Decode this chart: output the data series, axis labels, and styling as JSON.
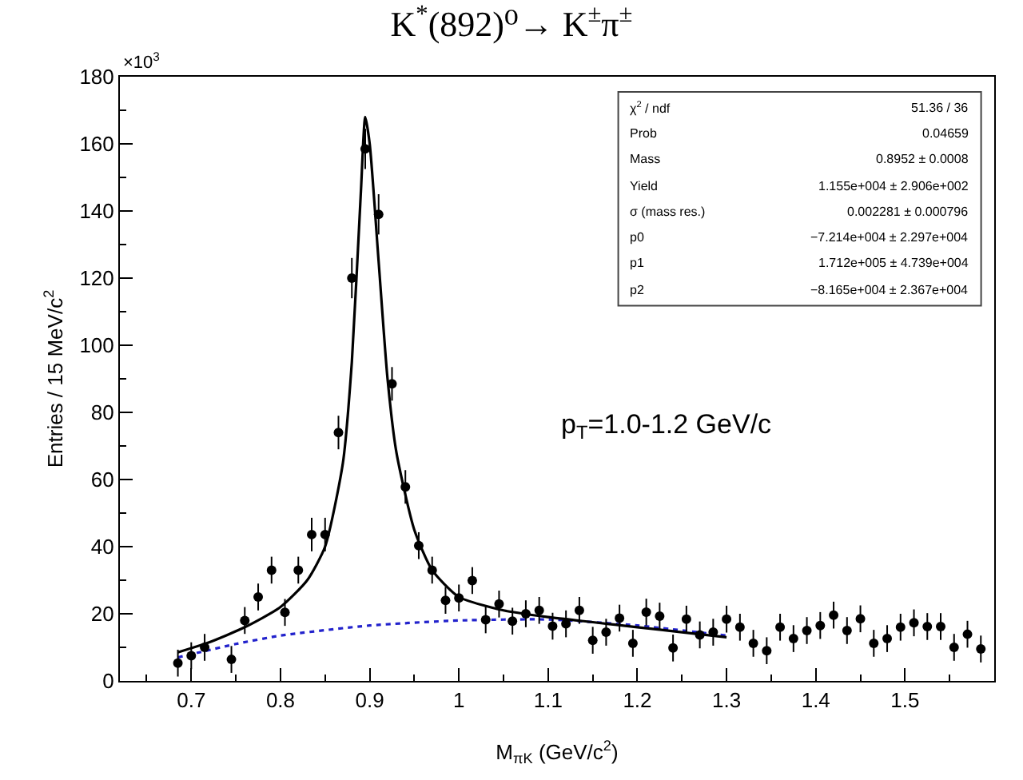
{
  "chart_data": {
    "type": "scatter",
    "title": "K$^{*}$(892)⁰→ K$^{±}$π$^{±}$",
    "xlabel": "M$_{πK}$ (GeV/c$^{2}$)",
    "ylabel": "Entries / 15 MeV/c$^{2}$",
    "xlim": [
      0.62,
      1.6
    ],
    "xticks": [
      0.7,
      0.8,
      0.9,
      1,
      1.1,
      1.2,
      1.3,
      1.4,
      1.5
    ],
    "ylim": [
      0,
      180
    ],
    "yticks": [
      0,
      20,
      40,
      60,
      80,
      100,
      120,
      140,
      160,
      180
    ],
    "grid": false,
    "series": [
      {
        "marker": "circle",
        "color": "#000000",
        "x": [
          0.685,
          0.7,
          0.715,
          0.73,
          0.745,
          0.76,
          0.775,
          0.79,
          0.805,
          0.82,
          0.835,
          0.85,
          0.865,
          0.88,
          0.895,
          0.91,
          0.925,
          0.94,
          0.955,
          0.97,
          0.985,
          1.0,
          1.015,
          1.03,
          1.045,
          1.06,
          1.075,
          1.09,
          1.105,
          1.12,
          1.135,
          1.15,
          1.165,
          1.18,
          1.195,
          1.21,
          1.225,
          1.24,
          1.255,
          1.27,
          1.285,
          1.3,
          1.315,
          1.33,
          1.345,
          1.36,
          1.375,
          1.39,
          1.405,
          1.42,
          1.435,
          1.45,
          1.465,
          1.48,
          1.495,
          1.51,
          1.525,
          1.54,
          1.555,
          1.57,
          1.585
        ],
        "values": [
          5.3,
          7.5,
          10,
          null,
          6.4,
          18,
          25,
          33,
          20.4,
          33,
          43.6,
          43.6,
          74,
          120,
          158.5,
          139,
          88.5,
          57.8,
          40.3,
          33,
          24,
          24.7,
          29.9,
          18.2,
          22.9,
          17.8,
          20,
          21,
          16.3,
          17,
          21,
          12.1,
          14.5,
          18.7,
          11.2,
          20.5,
          19.3,
          9.8,
          18.4,
          13.7,
          14.5,
          18.4,
          16,
          11.2,
          9,
          16,
          12.6,
          15,
          16.5,
          19.6,
          15,
          18.5,
          11.2,
          12.6,
          16,
          17.3,
          16.2,
          16.2,
          10,
          13.9,
          9.5
        ],
        "errors": [
          4,
          4,
          4,
          null,
          4,
          4,
          4,
          4,
          4,
          4,
          5,
          5,
          5,
          6,
          6,
          6,
          5,
          5,
          4,
          4,
          4,
          4,
          4,
          4,
          4,
          4,
          4,
          4,
          4,
          4,
          4,
          4,
          4,
          4,
          4,
          4,
          4,
          4,
          4,
          4,
          4,
          4,
          4,
          4,
          4,
          4,
          4,
          4,
          4,
          4,
          4,
          4,
          4,
          4,
          4,
          4,
          4,
          4,
          4,
          4,
          4
        ]
      },
      {
        "type": "line",
        "color": "#000000",
        "line_style": "solid",
        "x": [
          0.685,
          0.72,
          0.76,
          0.8,
          0.83,
          0.85,
          0.87,
          0.88,
          0.89,
          0.895,
          0.9,
          0.91,
          0.92,
          0.93,
          0.95,
          0.97,
          1.0,
          1.05,
          1.1,
          1.15,
          1.2,
          1.25,
          1.3
        ],
        "values": [
          8.5,
          11.5,
          16,
          22,
          30,
          40,
          65,
          95,
          145,
          168,
          160,
          125,
          90,
          68,
          45,
          33,
          25,
          21,
          19,
          17.5,
          16,
          14.5,
          13
        ]
      },
      {
        "type": "line",
        "color": "#2222cc",
        "line_style": "dotted",
        "x": [
          0.685,
          0.75,
          0.8,
          0.9,
          1.0,
          1.1,
          1.2,
          1.3
        ],
        "values": [
          7,
          11,
          13.5,
          16.5,
          18,
          18.3,
          16.5,
          13.5
        ]
      }
    ],
    "annotations": [
      "×10$^{3}$",
      "p$_{T}$=1.0-1.2 GeV/c",
      "χ$^{2}$ / ndf\t51.36 / 36",
      "Prob\t0.04659",
      "Mass\t0.8952 ± 0.0008",
      "Yield\t1.155e+004 ± 2.906e+002",
      "σ (mass res.)\t0.002281 ± 0.000796",
      "p0\t−7.214e+004 ± 2.297e+004",
      "p1\t1.712e+005 ± 4.739e+004",
      "p2\t−8.165e+004 ± 2.367e+004"
    ]
  }
}
